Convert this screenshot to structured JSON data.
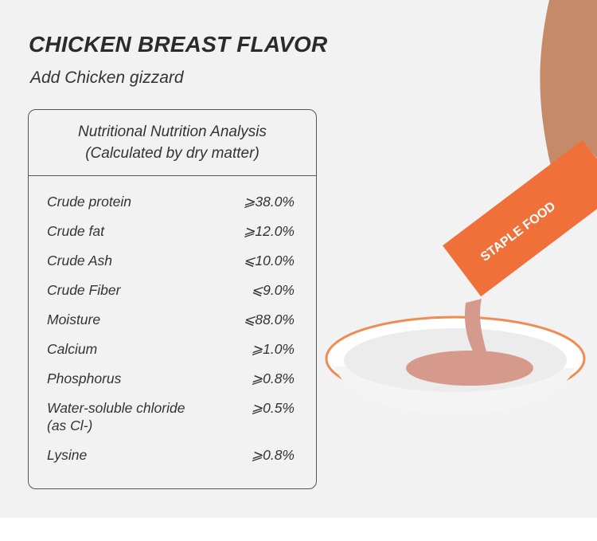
{
  "title": "CHICKEN BREAST FLAVOR",
  "subtitle": "Add Chicken gizzard",
  "table": {
    "heading_line1": "Nutritional Nutrition Analysis",
    "heading_line2": "(Calculated by dry matter)",
    "rows": [
      {
        "label": "Crude protein",
        "value": "⩾38.0%"
      },
      {
        "label": "Crude fat",
        "value": "⩾12.0%"
      },
      {
        "label": "Crude Ash",
        "value": "⩽10.0%"
      },
      {
        "label": "Crude Fiber",
        "value": "⩽9.0%"
      },
      {
        "label": "Moisture",
        "value": "⩽88.0%"
      },
      {
        "label": "Calcium",
        "value": "⩾1.0%"
      },
      {
        "label": "Phosphorus",
        "value": "⩾0.8%"
      },
      {
        "label": "Water-soluble chloride (as Cl-)",
        "value": "⩾0.5%"
      },
      {
        "label": "Lysine",
        "value": "⩾0.8%"
      }
    ]
  },
  "product_image": {
    "pouch_text": "STAPLE FOOD",
    "pouch_color": "#f0703a"
  }
}
